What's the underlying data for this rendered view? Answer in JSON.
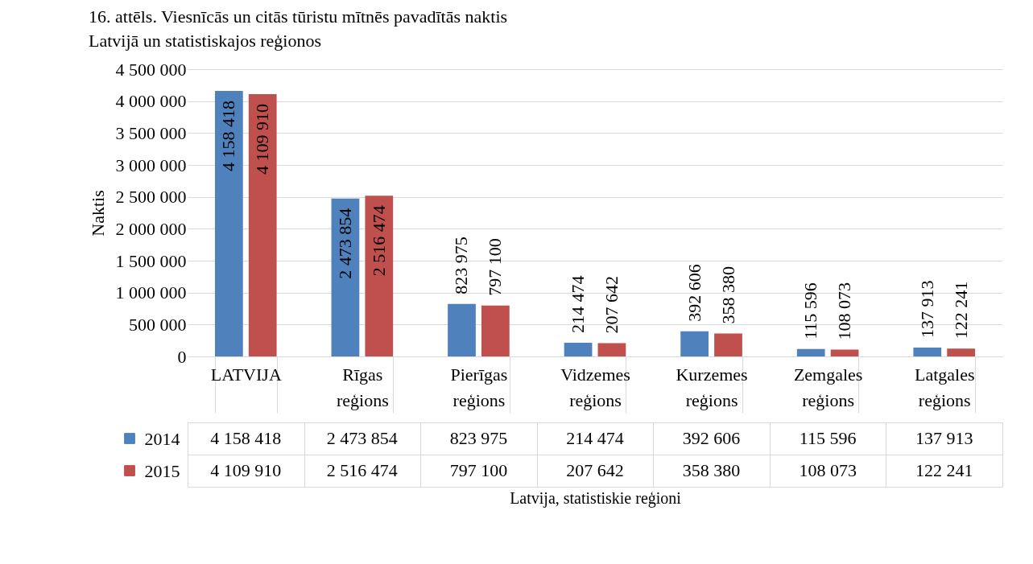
{
  "chart_data": {
    "type": "bar",
    "title": "16. attēls. Viesnīcās un citās tūristu mītnēs pavadītās naktis\nLatvijā un  statistiskajos reģionos",
    "xlabel": "Latvija, statistiskie reģioni",
    "ylabel": "Naktis",
    "categories": [
      "LATVIJA",
      "Rīgas reģions",
      "Pierīgas reģions",
      "Vidzemes reģions",
      "Kurzemes reģions",
      "Zemgales reģions",
      "Latgales reģions"
    ],
    "series": [
      {
        "name": "2014",
        "color": "#4f81bd",
        "values": [
          4158418,
          2473854,
          823975,
          214474,
          392606,
          115596,
          137913
        ],
        "value_labels": [
          "4 158 418",
          "2 473 854",
          "823 975",
          "214 474",
          "392 606",
          "115 596",
          "137 913"
        ]
      },
      {
        "name": "2015",
        "color": "#c0504d",
        "values": [
          4109910,
          2516474,
          797100,
          207642,
          358380,
          108073,
          122241
        ],
        "value_labels": [
          "4 109 910",
          "2 516 474",
          "797 100",
          "207 642",
          "358 380",
          "108 073",
          "122 241"
        ]
      }
    ],
    "ylim": [
      0,
      4500000
    ],
    "yticks": [
      0,
      500000,
      1000000,
      1500000,
      2000000,
      2500000,
      3000000,
      3500000,
      4000000,
      4500000
    ],
    "annotations": [
      "4 158 418",
      "2 473 854",
      "823 975",
      "214 474",
      "392 606",
      "115 596",
      "137 913",
      "4 109 910",
      "2 516 474",
      "797 100",
      "207 642",
      "358 380",
      "108 073",
      "122 241"
    ],
    "grid": "y",
    "legend": "bottom"
  }
}
